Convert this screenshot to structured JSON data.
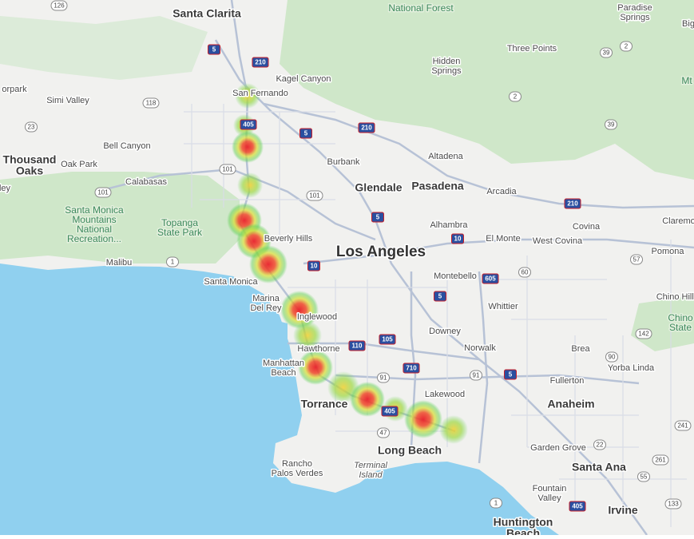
{
  "places": [
    [
      "Santa Clarita"
    ],
    [
      "National Forest"
    ],
    [
      "Paradise",
      "Springs"
    ],
    [
      "Big"
    ],
    [
      "Three Points"
    ],
    [
      "Hidden",
      "Springs"
    ],
    [
      "Kagel Canyon"
    ],
    [
      "orpark"
    ],
    [
      "Simi Valley"
    ],
    [
      "San Fernando"
    ],
    [
      "Bell Canyon"
    ],
    [
      "Thousand",
      "Oaks"
    ],
    [
      "Oak Park"
    ],
    [
      "Burbank"
    ],
    [
      "Altadena"
    ],
    [
      "Calabasas"
    ],
    [
      "Glendale"
    ],
    [
      "Pasadena"
    ],
    [
      "Arcadia"
    ],
    [
      "ley"
    ],
    [
      "Santa Monica",
      "Mountains",
      "National",
      "Recreation..."
    ],
    [
      "Topanga",
      "State Park"
    ],
    [
      "Alhambra"
    ],
    [
      "Covina"
    ],
    [
      "Claremo"
    ],
    [
      "Beverly Hills"
    ],
    [
      "El Monte"
    ],
    [
      "West Covina"
    ],
    [
      "Los Angeles"
    ],
    [
      "Pomona"
    ],
    [
      "Malibu"
    ],
    [
      "Santa Monica"
    ],
    [
      "Montebello"
    ],
    [
      "Marina",
      "Del Rey"
    ],
    [
      "Whittier"
    ],
    [
      "Chino Hills"
    ],
    [
      "Inglewood"
    ],
    [
      "Downey"
    ],
    [
      "Chino",
      "State"
    ],
    [
      "Hawthorne"
    ],
    [
      "Norwalk"
    ],
    [
      "Brea"
    ],
    [
      "Manhattan",
      "Beach"
    ],
    [
      "Yorba Linda"
    ],
    [
      "Fullerton"
    ],
    [
      "Lakewood"
    ],
    [
      "Torrance"
    ],
    [
      "Anaheim"
    ],
    [
      "Garden Grove"
    ],
    [
      "Long Beach"
    ],
    [
      "Santa Ana"
    ],
    [
      "Rancho",
      "Palos Verdes"
    ],
    [
      "Terminal",
      "Island"
    ],
    [
      "Fountain",
      "Valley"
    ],
    [
      "Irvine"
    ],
    [
      "Huntington",
      "Beach"
    ],
    [
      "Mt"
    ]
  ],
  "shields": [
    "126",
    "5",
    "210",
    "118",
    "23",
    "405",
    "210",
    "5",
    "101",
    "101",
    "101",
    "210",
    "5",
    "10",
    "57",
    "10",
    "60",
    "605",
    "1",
    "5",
    "105",
    "110",
    "710",
    "91",
    "91",
    "5",
    "90",
    "142",
    "405",
    "47",
    "22",
    "261",
    "405",
    "1",
    "2",
    "39",
    "2",
    "39",
    "55",
    "241",
    "133"
  ]
}
